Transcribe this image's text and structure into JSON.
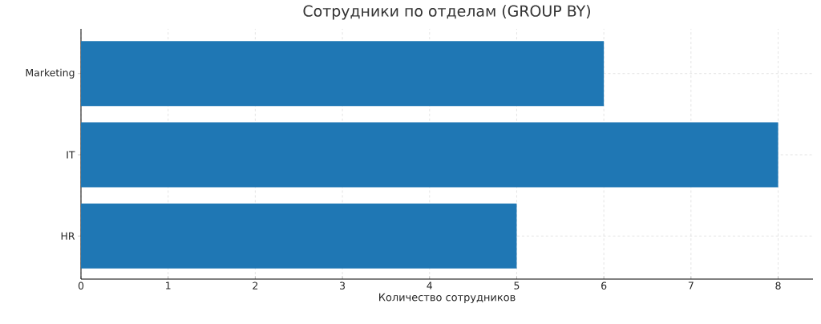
{
  "chart_data": {
    "type": "bar",
    "orientation": "horizontal",
    "title": "Сотрудники по отделам (GROUP BY)",
    "xlabel": "Количество сотрудников",
    "categories": [
      "Marketing",
      "IT",
      "HR"
    ],
    "values": [
      6,
      8,
      5
    ],
    "color": "#1f77b4",
    "xlim": [
      0,
      8.4
    ],
    "xticks": [
      0,
      1,
      2,
      3,
      4,
      5,
      6,
      7,
      8
    ],
    "grid": true
  }
}
